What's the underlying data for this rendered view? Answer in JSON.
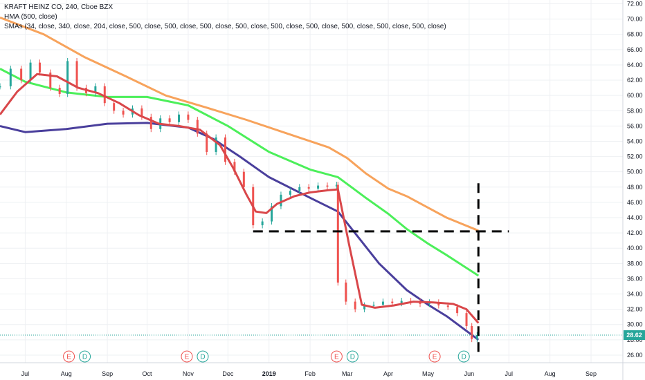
{
  "legend": {
    "line1": "KRAFT HEINZ CO, 240, Cboe BZX",
    "line2": "HMA (500, close)",
    "line3": "SMAs (34, close, 340, close, 204, close, 500, close, 500, close, 500, close, 500, close, 500, close, 500, close, 500, close, 500, close, 500, close)"
  },
  "colors": {
    "background": "#ffffff",
    "grid": "#eef0f3",
    "axis_text": "#131722",
    "candle_up": "#26a69a",
    "candle_down": "#ef5350",
    "sma_orange": "#f7a35c",
    "sma_green": "#4cef5a",
    "sma_navy": "#4a3f9c",
    "hma_red": "#d9474a",
    "price_line": "#26a69a",
    "annotation": "#000000",
    "event_red": "#ef5350",
    "event_teal": "#26a69a"
  },
  "chart_data": {
    "type": "line",
    "x_type": "date",
    "ylim": [
      25,
      72.5
    ],
    "y_ticks": [
      "26.00",
      "28.00",
      "30.00",
      "32.00",
      "34.00",
      "36.00",
      "38.00",
      "40.00",
      "42.00",
      "44.00",
      "46.00",
      "48.00",
      "50.00",
      "52.00",
      "54.00",
      "56.00",
      "58.00",
      "60.00",
      "62.00",
      "64.00",
      "66.00",
      "68.00",
      "70.00",
      "72.00"
    ],
    "x_ticks": [
      {
        "label": "Jul",
        "date": "2018-07-01"
      },
      {
        "label": "Aug",
        "date": "2018-08-01"
      },
      {
        "label": "Sep",
        "date": "2018-09-01"
      },
      {
        "label": "Oct",
        "date": "2018-10-01"
      },
      {
        "label": "Nov",
        "date": "2018-11-01"
      },
      {
        "label": "Dec",
        "date": "2018-12-01"
      },
      {
        "label": "2019",
        "date": "2019-01-01"
      },
      {
        "label": "Feb",
        "date": "2019-02-01"
      },
      {
        "label": "Mar",
        "date": "2019-03-01"
      },
      {
        "label": "Apr",
        "date": "2019-04-01"
      },
      {
        "label": "May",
        "date": "2019-05-01"
      },
      {
        "label": "Jun",
        "date": "2019-06-01"
      },
      {
        "label": "Jul",
        "date": "2019-07-01"
      },
      {
        "label": "Aug",
        "date": "2019-08-01"
      },
      {
        "label": "Sep",
        "date": "2019-09-01"
      }
    ],
    "last_price": 28.62,
    "last_price_label": "28.62",
    "price_series": {
      "dates": [
        "2018-06-12",
        "2018-06-20",
        "2018-06-28",
        "2018-07-05",
        "2018-07-12",
        "2018-07-20",
        "2018-07-27",
        "2018-08-02",
        "2018-08-09",
        "2018-08-16",
        "2018-08-23",
        "2018-08-30",
        "2018-09-06",
        "2018-09-13",
        "2018-09-20",
        "2018-09-27",
        "2018-10-04",
        "2018-10-11",
        "2018-10-18",
        "2018-10-25",
        "2018-11-01",
        "2018-11-08",
        "2018-11-15",
        "2018-11-22",
        "2018-11-29",
        "2018-12-06",
        "2018-12-13",
        "2018-12-20",
        "2018-12-27",
        "2019-01-03",
        "2019-01-10",
        "2019-01-17",
        "2019-01-24",
        "2019-01-31",
        "2019-02-07",
        "2019-02-14",
        "2019-02-21",
        "2019-02-22",
        "2019-02-28",
        "2019-03-07",
        "2019-03-14",
        "2019-03-21",
        "2019-03-28",
        "2019-04-04",
        "2019-04-11",
        "2019-04-18",
        "2019-04-25",
        "2019-05-02",
        "2019-05-09",
        "2019-05-16",
        "2019-05-23",
        "2019-05-30",
        "2019-06-03",
        "2019-06-07"
      ],
      "close": [
        61.2,
        63.5,
        62.0,
        64.3,
        63.0,
        61.0,
        60.2,
        64.5,
        61.0,
        60.3,
        61.2,
        59.0,
        58.0,
        57.5,
        58.3,
        57.2,
        55.6,
        57.0,
        56.5,
        57.5,
        56.8,
        55.0,
        52.6,
        54.5,
        51.3,
        50.0,
        48.0,
        43.0,
        43.5,
        45.5,
        47.0,
        47.5,
        48.0,
        47.8,
        48.2,
        48.1,
        48.3,
        35.5,
        33.0,
        32.0,
        32.5,
        32.6,
        33.0,
        32.8,
        33.1,
        33.0,
        32.7,
        32.9,
        32.5,
        32.3,
        31.5,
        29.8,
        28.1,
        28.62
      ]
    },
    "series": [
      {
        "name": "HMA (500, close)",
        "color_key": "hma_red",
        "dates": [
          "2018-06-12",
          "2018-06-25",
          "2018-07-10",
          "2018-07-25",
          "2018-08-10",
          "2018-08-25",
          "2018-09-10",
          "2018-09-25",
          "2018-10-10",
          "2018-10-25",
          "2018-11-10",
          "2018-11-25",
          "2018-12-05",
          "2018-12-15",
          "2018-12-22",
          "2018-12-30",
          "2019-01-07",
          "2019-01-20",
          "2019-02-01",
          "2019-02-15",
          "2019-02-22",
          "2019-03-03",
          "2019-03-12",
          "2019-03-22",
          "2019-04-05",
          "2019-04-20",
          "2019-05-05",
          "2019-05-20",
          "2019-05-30",
          "2019-06-08"
        ],
        "values": [
          57.5,
          60.5,
          62.8,
          62.5,
          61.0,
          60.3,
          59.0,
          57.4,
          56.3,
          56.0,
          55.5,
          53.5,
          50.5,
          47.0,
          44.8,
          44.6,
          45.8,
          46.8,
          47.3,
          47.6,
          47.7,
          40.0,
          32.6,
          32.2,
          32.5,
          33.0,
          32.9,
          32.7,
          32.0,
          30.2
        ]
      },
      {
        "name": "",
        "color_key": "sma_orange",
        "dates": [
          "2018-06-12",
          "2018-07-15",
          "2018-08-15",
          "2018-09-15",
          "2018-10-15",
          "2018-11-15",
          "2018-12-15",
          "2019-01-15",
          "2019-02-15",
          "2019-03-01",
          "2019-03-15",
          "2019-04-01",
          "2019-04-15",
          "2019-05-01",
          "2019-05-15",
          "2019-06-08"
        ],
        "values": [
          70.2,
          68.0,
          65.0,
          62.5,
          60.0,
          58.4,
          56.8,
          55.0,
          53.2,
          51.8,
          49.8,
          47.8,
          46.8,
          45.3,
          44.0,
          42.3
        ]
      },
      {
        "name": "",
        "color_key": "sma_green",
        "dates": [
          "2018-06-12",
          "2018-07-01",
          "2018-08-01",
          "2018-09-01",
          "2018-10-01",
          "2018-11-01",
          "2018-12-01",
          "2019-01-01",
          "2019-02-01",
          "2019-02-22",
          "2019-03-15",
          "2019-04-01",
          "2019-04-15",
          "2019-05-01",
          "2019-05-15",
          "2019-06-08"
        ],
        "values": [
          63.5,
          61.8,
          60.4,
          59.8,
          59.8,
          58.7,
          56.0,
          52.6,
          50.3,
          49.3,
          46.6,
          44.5,
          42.5,
          40.6,
          39.1,
          36.4
        ]
      },
      {
        "name": "",
        "color_key": "sma_navy",
        "dates": [
          "2018-06-12",
          "2018-07-01",
          "2018-08-01",
          "2018-09-01",
          "2018-10-01",
          "2018-11-01",
          "2018-11-20",
          "2018-12-10",
          "2019-01-01",
          "2019-02-01",
          "2019-02-22",
          "2019-03-10",
          "2019-03-25",
          "2019-04-15",
          "2019-05-01",
          "2019-05-15",
          "2019-06-08"
        ],
        "values": [
          56.0,
          55.2,
          55.6,
          56.3,
          56.4,
          55.8,
          54.3,
          52.0,
          49.3,
          46.6,
          44.8,
          41.3,
          38.0,
          34.5,
          32.6,
          31.1,
          28.0
        ]
      }
    ],
    "annotations": {
      "horizontal_dashed": {
        "y": 42.2,
        "x_start": "2018-12-20",
        "x_end": "2019-07-01"
      },
      "vertical_dashed": {
        "x": "2019-06-08",
        "y_start": 48.5,
        "y_end": 26.0
      }
    },
    "events": [
      {
        "label": "E",
        "date": "2018-08-03",
        "type": "earnings"
      },
      {
        "label": "D",
        "date": "2018-08-15",
        "type": "dividend"
      },
      {
        "label": "E",
        "date": "2018-10-31",
        "type": "earnings"
      },
      {
        "label": "D",
        "date": "2018-11-12",
        "type": "dividend"
      },
      {
        "label": "E",
        "date": "2019-02-21",
        "type": "earnings"
      },
      {
        "label": "D",
        "date": "2019-03-05",
        "type": "dividend"
      },
      {
        "label": "E",
        "date": "2019-05-06",
        "type": "earnings"
      },
      {
        "label": "D",
        "date": "2019-05-28",
        "type": "dividend"
      }
    ]
  }
}
